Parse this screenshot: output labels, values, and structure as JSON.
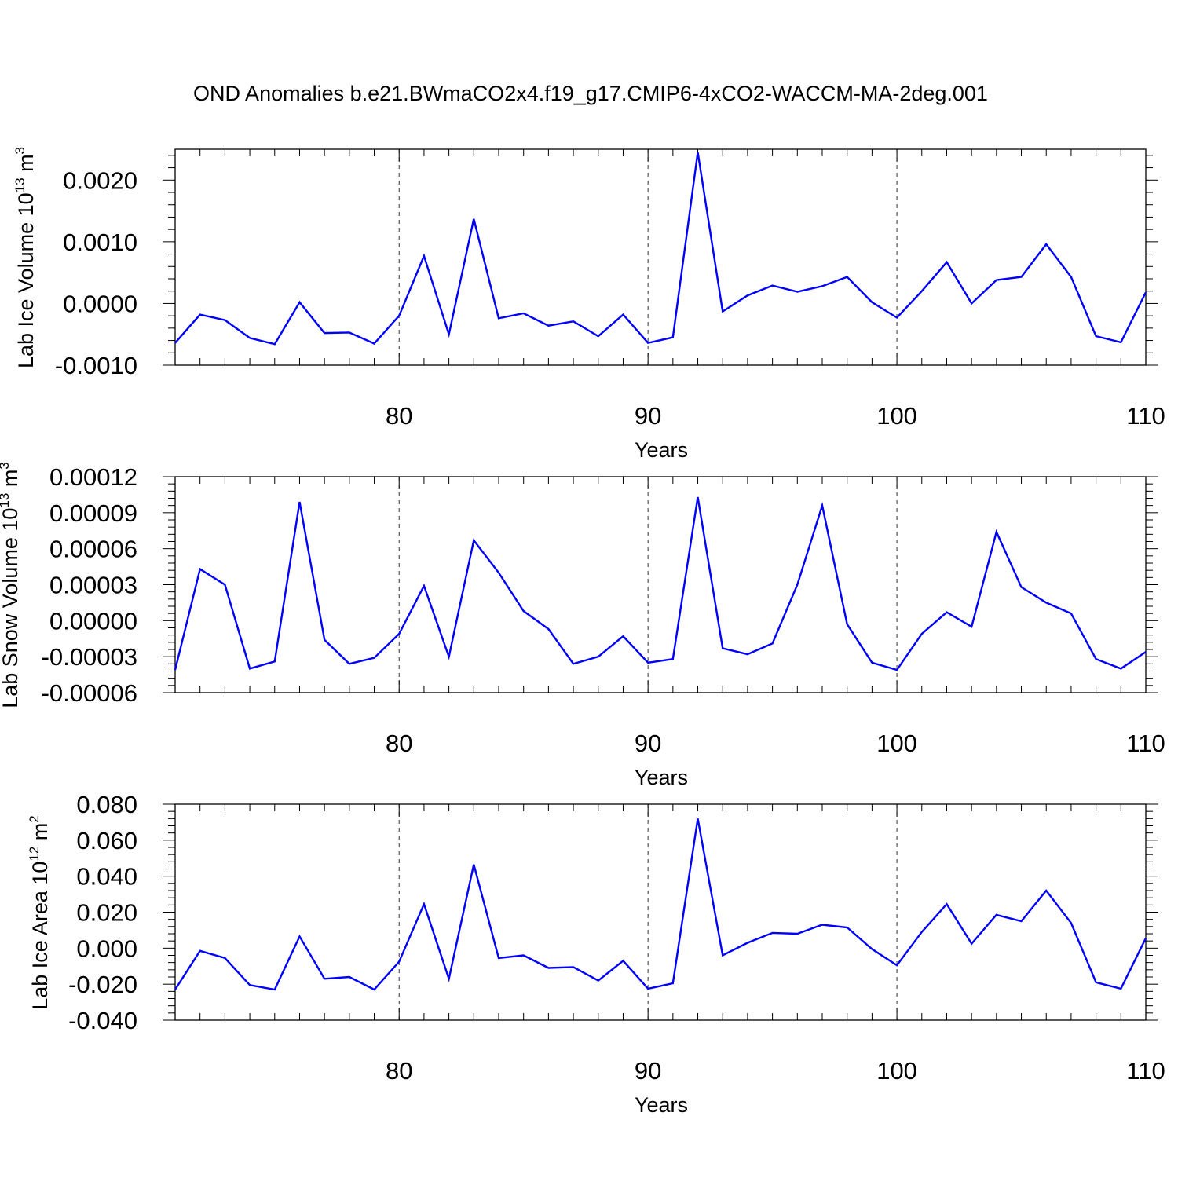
{
  "title": "OND Anomalies b.e21.BWmaCO2x4.f19_g17.CMIP6-4xCO2-WACCM-MA-2deg.001",
  "colors": {
    "line": "#0000ff",
    "axes": "#000000",
    "grid": "#000000"
  },
  "chart_data": [
    {
      "type": "line",
      "xlabel": "Years",
      "ylabel": "Lab Ice Volume 10",
      "ylabel_sup1": "13",
      "ylabel_unit": " m",
      "ylabel_sup2": "3",
      "xlim": [
        71,
        110
      ],
      "ylim": [
        -0.001,
        0.0025
      ],
      "xticks": [
        80,
        90,
        100,
        110
      ],
      "xtick_labels": [
        "80",
        "90",
        "100",
        "110"
      ],
      "yticks": [
        -0.001,
        0.0,
        0.001,
        0.002
      ],
      "ytick_labels": [
        "-0.0010",
        "0.0000",
        "0.0010",
        "0.0020"
      ],
      "grid_x": [
        80,
        90,
        100
      ],
      "x": [
        71,
        72,
        73,
        74,
        75,
        76,
        77,
        78,
        79,
        80,
        81,
        82,
        83,
        84,
        85,
        86,
        87,
        88,
        89,
        90,
        91,
        92,
        93,
        94,
        95,
        96,
        97,
        98,
        99,
        100,
        101,
        102,
        103,
        104,
        105,
        106,
        107,
        108,
        109,
        110
      ],
      "y": [
        -0.00064,
        -0.00018,
        -0.00027,
        -0.00056,
        -0.00066,
        2e-05,
        -0.00048,
        -0.00047,
        -0.00065,
        -0.0002,
        0.00077,
        -0.0005,
        0.00137,
        -0.00024,
        -0.00016,
        -0.00036,
        -0.00029,
        -0.00053,
        -0.00018,
        -0.00064,
        -0.00055,
        0.00245,
        -0.00013,
        0.00013,
        0.00029,
        0.00019,
        0.00028,
        0.00043,
        2e-05,
        -0.00023,
        0.0002,
        0.00067,
        0.0,
        0.00038,
        0.00043,
        0.00096,
        0.00043,
        -0.00053,
        -0.00063,
        0.00018
      ]
    },
    {
      "type": "line",
      "xlabel": "Years",
      "ylabel": "Lab Snow Volume 10",
      "ylabel_sup1": "13",
      "ylabel_unit": " m",
      "ylabel_sup2": "3",
      "xlim": [
        71,
        110
      ],
      "ylim": [
        -6e-05,
        0.00012
      ],
      "xticks": [
        80,
        90,
        100,
        110
      ],
      "xtick_labels": [
        "80",
        "90",
        "100",
        "110"
      ],
      "yticks": [
        -6e-05,
        -3e-05,
        0.0,
        3e-05,
        6e-05,
        9e-05,
        0.00012
      ],
      "ytick_labels": [
        "-0.00006",
        "-0.00003",
        "0.00000",
        "0.00003",
        "0.00006",
        "0.00009",
        "0.00012"
      ],
      "grid_x": [
        80,
        90,
        100
      ],
      "x": [
        71,
        72,
        73,
        74,
        75,
        76,
        77,
        78,
        79,
        80,
        81,
        82,
        83,
        84,
        85,
        86,
        87,
        88,
        89,
        90,
        91,
        92,
        93,
        94,
        95,
        96,
        97,
        98,
        99,
        100,
        101,
        102,
        103,
        104,
        105,
        106,
        107,
        108,
        109,
        110
      ],
      "y": [
        -4.1e-05,
        4.3e-05,
        3e-05,
        -4e-05,
        -3.4e-05,
        9.9e-05,
        -1.6e-05,
        -3.6e-05,
        -3.1e-05,
        -1.1e-05,
        2.9e-05,
        -3e-05,
        6.7e-05,
        4e-05,
        8e-06,
        -7e-06,
        -3.6e-05,
        -3e-05,
        -1.3e-05,
        -3.5e-05,
        -3.2e-05,
        0.000103,
        -2.3e-05,
        -2.8e-05,
        -1.9e-05,
        3e-05,
        9.6e-05,
        -3e-06,
        -3.5e-05,
        -4.1e-05,
        -1.1e-05,
        7e-06,
        -5e-06,
        7.4e-05,
        2.8e-05,
        1.5e-05,
        6e-06,
        -3.2e-05,
        -4e-05,
        -2.6e-05
      ]
    },
    {
      "type": "line",
      "xlabel": "Years",
      "ylabel": "Lab Ice Area 10",
      "ylabel_sup1": "12",
      "ylabel_unit": " m",
      "ylabel_sup2": "2",
      "xlim": [
        71,
        110
      ],
      "ylim": [
        -0.04,
        0.08
      ],
      "xticks": [
        80,
        90,
        100,
        110
      ],
      "xtick_labels": [
        "80",
        "90",
        "100",
        "110"
      ],
      "yticks": [
        -0.04,
        -0.02,
        0.0,
        0.02,
        0.04,
        0.06,
        0.08
      ],
      "ytick_labels": [
        "-0.040",
        "-0.020",
        "0.000",
        "0.020",
        "0.040",
        "0.060",
        "0.080"
      ],
      "grid_x": [
        80,
        90,
        100
      ],
      "x": [
        71,
        72,
        73,
        74,
        75,
        76,
        77,
        78,
        79,
        80,
        81,
        82,
        83,
        84,
        85,
        86,
        87,
        88,
        89,
        90,
        91,
        92,
        93,
        94,
        95,
        96,
        97,
        98,
        99,
        100,
        101,
        102,
        103,
        104,
        105,
        106,
        107,
        108,
        109,
        110
      ],
      "y": [
        -0.023,
        -0.0015,
        -0.0055,
        -0.0205,
        -0.023,
        0.0065,
        -0.017,
        -0.016,
        -0.023,
        -0.0075,
        0.0245,
        -0.017,
        0.0465,
        -0.0055,
        -0.004,
        -0.011,
        -0.0105,
        -0.018,
        -0.007,
        -0.0225,
        -0.0195,
        0.072,
        -0.004,
        0.003,
        0.0085,
        0.008,
        0.013,
        0.0115,
        -0.0005,
        -0.0095,
        0.009,
        0.0245,
        0.0025,
        0.0185,
        0.015,
        0.032,
        0.014,
        -0.019,
        -0.0225,
        0.0055
      ]
    }
  ]
}
